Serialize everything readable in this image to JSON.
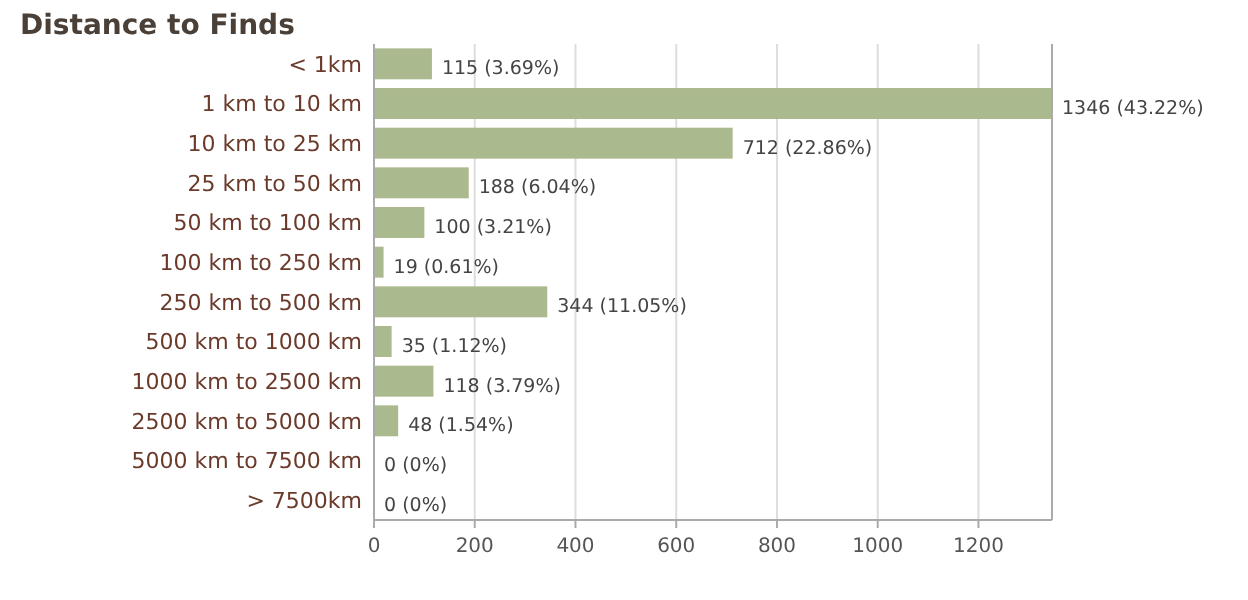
{
  "chart_data": {
    "type": "bar",
    "orientation": "horizontal",
    "title": "Distance to Finds",
    "categories": [
      "< 1km",
      "1 km to 10 km",
      "10 km to 25 km",
      "25 km to 50 km",
      "50 km to 100 km",
      "100 km to 250 km",
      "250 km to 500 km",
      "500 km to 1000 km",
      "1000 km to 2500 km",
      "2500 km to 5000 km",
      "5000 km to 7500 km",
      "> 7500km"
    ],
    "values": [
      115,
      1346,
      712,
      188,
      100,
      19,
      344,
      35,
      118,
      48,
      0,
      0
    ],
    "value_labels": [
      "115 (3.69%)",
      "1346 (43.22%)",
      "712 (22.86%)",
      "188 (6.04%)",
      "100 (3.21%)",
      "19 (0.61%)",
      "344 (11.05%)",
      "35 (1.12%)",
      "118 (3.79%)",
      "48 (1.54%)",
      "0 (0%)",
      "0 (0%)"
    ],
    "color": "#abb98e",
    "xlim": [
      0,
      1346
    ],
    "xticks": [
      0,
      200,
      400,
      600,
      800,
      1000,
      1200
    ],
    "grid": "x"
  }
}
